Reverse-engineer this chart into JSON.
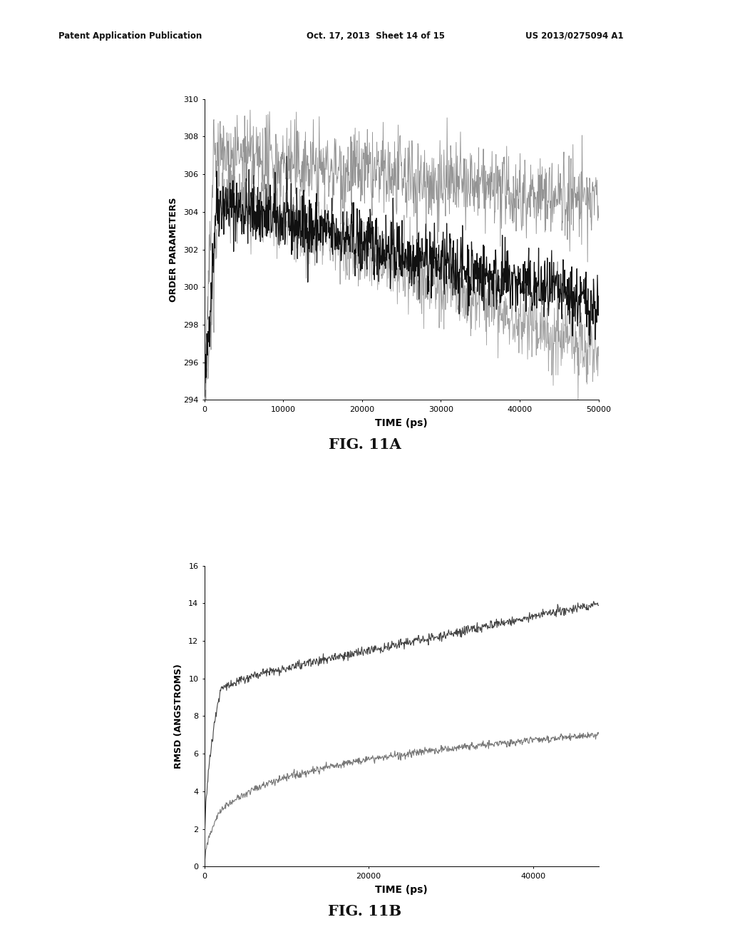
{
  "header_left": "Patent Application Publication",
  "header_mid": "Oct. 17, 2013  Sheet 14 of 15",
  "header_right": "US 2013/0275094 A1",
  "fig11a_label": "FIG. 11A",
  "fig11b_label": "FIG. 11B",
  "plot1": {
    "xlabel": "TIME (ps)",
    "ylabel": "ORDER PARAMETERS",
    "xlim": [
      0,
      50000
    ],
    "ylim": [
      294,
      310
    ],
    "yticks": [
      294,
      296,
      298,
      300,
      302,
      304,
      306,
      308,
      310
    ],
    "xticks": [
      0,
      10000,
      20000,
      30000,
      40000,
      50000
    ],
    "xtick_labels": [
      "0",
      "10000",
      "20000",
      "30000",
      "40000",
      "50000"
    ]
  },
  "plot2": {
    "xlabel": "TIME (ps)",
    "ylabel": "RMSD (ANGSTROMS)",
    "xlim": [
      0,
      48000
    ],
    "ylim": [
      0,
      16
    ],
    "yticks": [
      0,
      2,
      4,
      6,
      8,
      10,
      12,
      14,
      16
    ],
    "xticks": [
      0,
      20000,
      40000
    ],
    "xtick_labels": [
      "0",
      "20000",
      "40000"
    ]
  },
  "bg_color": "#ffffff"
}
